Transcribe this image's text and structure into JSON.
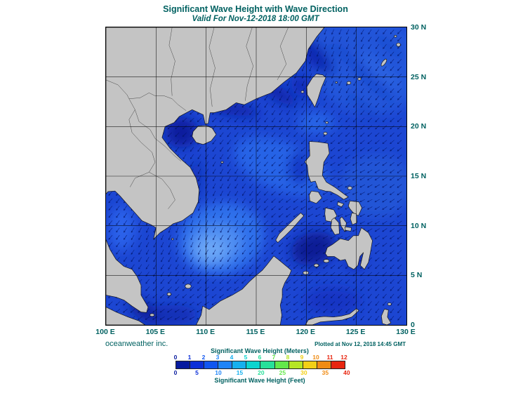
{
  "header": {
    "title": "Significant Wave Height with Wave Direction",
    "subtitle": "Valid For Nov-12-2018 18:00 GMT"
  },
  "map": {
    "lat_labels": [
      "30 N",
      "25 N",
      "20 N",
      "15 N",
      "10 N",
      "5 N",
      "0"
    ],
    "lon_labels": [
      "100 E",
      "105 E",
      "110 E",
      "115 E",
      "120 E",
      "125 E",
      "130 E"
    ],
    "extent": {
      "lon_min": 100,
      "lon_max": 130,
      "lat_min": 0,
      "lat_max": 30
    },
    "land_color": "#c4c4c4",
    "ocean_base_color": "#1c46d2",
    "arrow_color": "#001468",
    "grid_color": "#000000"
  },
  "footer": {
    "branding": "oceanweather inc.",
    "plotted": "Plotted at Nov 12, 2018 14:45 GMT"
  },
  "colorbar": {
    "title_meters": "Significant Wave Height (Meters)",
    "title_feet": "Significant Wave Height (Feet)",
    "meter_ticks": [
      0,
      1,
      2,
      3,
      4,
      5,
      6,
      7,
      8,
      9,
      10,
      11,
      12
    ],
    "feet_ticks": [
      0,
      5,
      10,
      15,
      20,
      25,
      30,
      35,
      40
    ],
    "colors": [
      "#071a9e",
      "#0b2fd8",
      "#1156f0",
      "#1f84f8",
      "#16b0ee",
      "#0cd4cf",
      "#27e09a",
      "#63e84b",
      "#b6e524",
      "#f2cf16",
      "#f08c14",
      "#e82610"
    ]
  },
  "theme": {
    "heading_color": "#006161",
    "label_color": "#006161",
    "background": "#ffffff"
  }
}
